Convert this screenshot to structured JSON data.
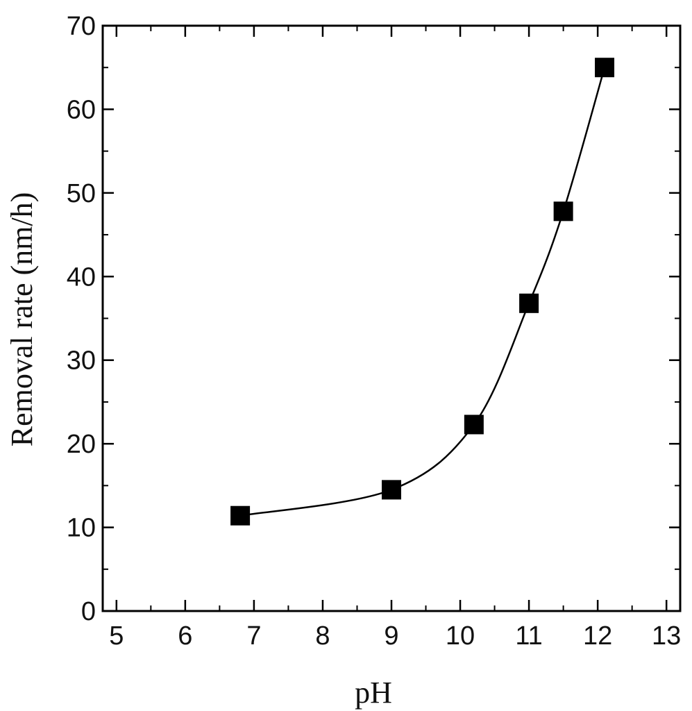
{
  "chart_data": {
    "type": "scatter",
    "title": "",
    "xlabel": "pH",
    "ylabel": "Removal rate (nm/h)",
    "xlim": [
      4.8,
      13.2
    ],
    "ylim": [
      0,
      70
    ],
    "xticks": [
      5,
      6,
      7,
      8,
      9,
      10,
      11,
      12,
      13
    ],
    "yticks": [
      0,
      10,
      20,
      30,
      40,
      50,
      60,
      70
    ],
    "xtick_labels": [
      "5",
      "6",
      "7",
      "8",
      "9",
      "10",
      "11",
      "12",
      "13"
    ],
    "ytick_labels": [
      "0",
      "10",
      "20",
      "30",
      "40",
      "50",
      "60",
      "70"
    ],
    "grid": false,
    "legend": "none",
    "series": [
      {
        "marker": "square",
        "color": "#000000",
        "fit_curve": true,
        "points": [
          {
            "x": 6.8,
            "y": 11.4
          },
          {
            "x": 9.0,
            "y": 14.5
          },
          {
            "x": 10.2,
            "y": 22.3
          },
          {
            "x": 11.0,
            "y": 36.8
          },
          {
            "x": 11.5,
            "y": 47.8
          },
          {
            "x": 12.1,
            "y": 65.0
          }
        ]
      }
    ]
  }
}
